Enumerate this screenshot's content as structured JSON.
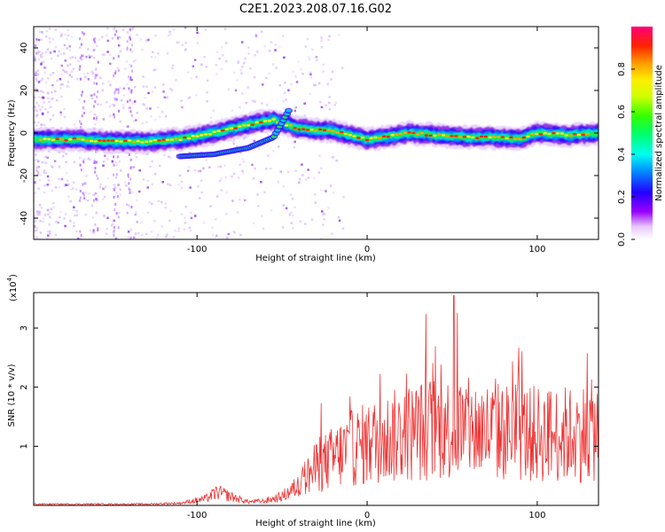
{
  "title": "C2E1.2023.208.07.16.G02",
  "colors": {
    "snr_line": "#ee3333",
    "spectrum_ridge_center": "#ff2200",
    "spectrum_ridge_edge": "#5500ff",
    "background": "#ffffff"
  },
  "chart_data": [
    {
      "type": "heatmap",
      "name": "spectrogram",
      "xlabel": "Height of straight line (km)",
      "ylabel": "Frequency (Hz)",
      "xlim": [
        -196,
        136
      ],
      "ylim": [
        -50,
        50
      ],
      "x_ticks": [
        -100,
        0,
        100
      ],
      "x_tick_labels": [
        "-100",
        "0",
        "100"
      ],
      "y_ticks": [
        -40,
        -20,
        0,
        20,
        40
      ],
      "y_tick_labels": [
        "-40",
        "-20",
        "0",
        "20",
        "40"
      ],
      "ridge_path": [
        {
          "x": -196,
          "y": -3
        },
        {
          "x": -170,
          "y": -3
        },
        {
          "x": -150,
          "y": -4
        },
        {
          "x": -130,
          "y": -4
        },
        {
          "x": -110,
          "y": -3
        },
        {
          "x": -90,
          "y": 0
        },
        {
          "x": -70,
          "y": 4
        },
        {
          "x": -55,
          "y": 6
        },
        {
          "x": -40,
          "y": 2
        },
        {
          "x": -20,
          "y": 1
        },
        {
          "x": 0,
          "y": -3
        },
        {
          "x": 10,
          "y": -2
        },
        {
          "x": 25,
          "y": 0
        },
        {
          "x": 40,
          "y": -1
        },
        {
          "x": 60,
          "y": -2
        },
        {
          "x": 80,
          "y": -2
        },
        {
          "x": 90,
          "y": -3
        },
        {
          "x": 100,
          "y": 0
        },
        {
          "x": 120,
          "y": -1
        },
        {
          "x": 136,
          "y": 0
        }
      ],
      "secondary_branch": [
        {
          "x": -110,
          "y": -11
        },
        {
          "x": -90,
          "y": -10
        },
        {
          "x": -70,
          "y": -7
        },
        {
          "x": -55,
          "y": -2
        },
        {
          "x": -45,
          "y": 12
        }
      ],
      "colorbar": {
        "label": "Normalized spectral amplitude",
        "range": [
          0,
          1
        ],
        "ticks": [
          0.0,
          0.2,
          0.4,
          0.6,
          0.8
        ],
        "tick_labels": [
          "0.0",
          "0.2",
          "0.4",
          "0.6",
          "0.8"
        ]
      }
    },
    {
      "type": "line",
      "name": "snr",
      "xlabel": "Height of straight line (km)",
      "ylabel": "SNR (10 * v/v)",
      "multiplier_label": "(x10",
      "multiplier_exponent": "4",
      "multiplier_close": ")",
      "xlim": [
        -196,
        136
      ],
      "ylim": [
        0,
        3.6
      ],
      "x_ticks": [
        -100,
        0,
        100
      ],
      "x_tick_labels": [
        "-100",
        "0",
        "100"
      ],
      "y_ticks": [
        1,
        2,
        3
      ],
      "y_tick_labels": [
        "1",
        "2",
        "3"
      ],
      "envelope": [
        {
          "x": -196,
          "y": 0.03
        },
        {
          "x": -130,
          "y": 0.03
        },
        {
          "x": -110,
          "y": 0.05
        },
        {
          "x": -95,
          "y": 0.15
        },
        {
          "x": -88,
          "y": 0.3
        },
        {
          "x": -80,
          "y": 0.2
        },
        {
          "x": -70,
          "y": 0.08
        },
        {
          "x": -60,
          "y": 0.1
        },
        {
          "x": -50,
          "y": 0.2
        },
        {
          "x": -40,
          "y": 0.45
        },
        {
          "x": -30,
          "y": 0.8
        },
        {
          "x": -20,
          "y": 1.0
        },
        {
          "x": -10,
          "y": 1.2
        },
        {
          "x": 0,
          "y": 1.3
        },
        {
          "x": 20,
          "y": 1.5
        },
        {
          "x": 40,
          "y": 1.65
        },
        {
          "x": 60,
          "y": 1.6
        },
        {
          "x": 80,
          "y": 1.55
        },
        {
          "x": 100,
          "y": 1.5
        },
        {
          "x": 120,
          "y": 1.5
        },
        {
          "x": 136,
          "y": 1.6
        }
      ],
      "peak": {
        "x": 51,
        "y": 3.55
      }
    }
  ]
}
